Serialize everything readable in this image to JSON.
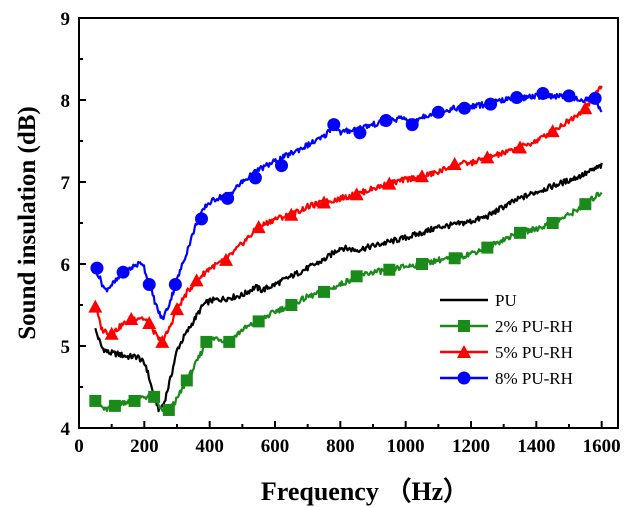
{
  "chart_data": {
    "type": "line",
    "xlabel": "Frequency （Hz）",
    "ylabel": "Sound insulation (dB)",
    "xlim": [
      0,
      1650
    ],
    "ylim": [
      4,
      9
    ],
    "xticks": [
      0,
      200,
      400,
      600,
      800,
      1000,
      1200,
      1400,
      1600
    ],
    "yticks": [
      4,
      5,
      6,
      7,
      8,
      9
    ],
    "legend_position": "bottom-right",
    "series": [
      {
        "name": "PU",
        "color": "#000000",
        "marker": "none",
        "points": [
          [
            50,
            5.2
          ],
          [
            70,
            4.98
          ],
          [
            90,
            4.92
          ],
          [
            120,
            4.9
          ],
          [
            150,
            4.87
          ],
          [
            180,
            4.87
          ],
          [
            205,
            4.76
          ],
          [
            225,
            4.45
          ],
          [
            245,
            4.22
          ],
          [
            260,
            4.3
          ],
          [
            280,
            4.6
          ],
          [
            300,
            4.95
          ],
          [
            320,
            5.1
          ],
          [
            350,
            5.3
          ],
          [
            380,
            5.5
          ],
          [
            400,
            5.55
          ],
          [
            450,
            5.58
          ],
          [
            500,
            5.62
          ],
          [
            540,
            5.72
          ],
          [
            560,
            5.68
          ],
          [
            600,
            5.75
          ],
          [
            650,
            5.85
          ],
          [
            700,
            5.95
          ],
          [
            750,
            6.05
          ],
          [
            800,
            6.2
          ],
          [
            850,
            6.17
          ],
          [
            900,
            6.22
          ],
          [
            950,
            6.27
          ],
          [
            1000,
            6.32
          ],
          [
            1050,
            6.38
          ],
          [
            1100,
            6.45
          ],
          [
            1150,
            6.48
          ],
          [
            1200,
            6.52
          ],
          [
            1250,
            6.58
          ],
          [
            1300,
            6.7
          ],
          [
            1350,
            6.8
          ],
          [
            1400,
            6.88
          ],
          [
            1450,
            6.95
          ],
          [
            1500,
            7.02
          ],
          [
            1550,
            7.1
          ],
          [
            1600,
            7.2
          ]
        ]
      },
      {
        "name": "2% PU-RH",
        "color": "#1a8a1a",
        "marker": "square",
        "points": [
          [
            50,
            4.33
          ],
          [
            80,
            4.22
          ],
          [
            110,
            4.27
          ],
          [
            140,
            4.32
          ],
          [
            170,
            4.33
          ],
          [
            200,
            4.38
          ],
          [
            230,
            4.38
          ],
          [
            255,
            4.2
          ],
          [
            275,
            4.22
          ],
          [
            300,
            4.35
          ],
          [
            330,
            4.58
          ],
          [
            360,
            4.8
          ],
          [
            390,
            5.05
          ],
          [
            420,
            5.1
          ],
          [
            460,
            5.05
          ],
          [
            500,
            5.2
          ],
          [
            550,
            5.3
          ],
          [
            600,
            5.42
          ],
          [
            650,
            5.5
          ],
          [
            700,
            5.6
          ],
          [
            750,
            5.66
          ],
          [
            800,
            5.75
          ],
          [
            850,
            5.85
          ],
          [
            900,
            5.9
          ],
          [
            950,
            5.93
          ],
          [
            1000,
            5.97
          ],
          [
            1050,
            6.0
          ],
          [
            1100,
            6.05
          ],
          [
            1150,
            6.07
          ],
          [
            1200,
            6.13
          ],
          [
            1250,
            6.2
          ],
          [
            1300,
            6.3
          ],
          [
            1350,
            6.38
          ],
          [
            1400,
            6.43
          ],
          [
            1450,
            6.5
          ],
          [
            1500,
            6.6
          ],
          [
            1550,
            6.73
          ],
          [
            1600,
            6.88
          ]
        ]
      },
      {
        "name": "5% PU-RH",
        "color": "#ff0000",
        "marker": "triangle",
        "points": [
          [
            50,
            5.48
          ],
          [
            70,
            5.2
          ],
          [
            100,
            5.15
          ],
          [
            130,
            5.25
          ],
          [
            160,
            5.33
          ],
          [
            190,
            5.35
          ],
          [
            215,
            5.28
          ],
          [
            240,
            5.1
          ],
          [
            255,
            5.05
          ],
          [
            275,
            5.2
          ],
          [
            300,
            5.45
          ],
          [
            330,
            5.65
          ],
          [
            360,
            5.8
          ],
          [
            400,
            5.95
          ],
          [
            450,
            6.05
          ],
          [
            500,
            6.25
          ],
          [
            550,
            6.45
          ],
          [
            600,
            6.55
          ],
          [
            650,
            6.6
          ],
          [
            700,
            6.7
          ],
          [
            750,
            6.75
          ],
          [
            800,
            6.8
          ],
          [
            850,
            6.85
          ],
          [
            900,
            6.92
          ],
          [
            950,
            6.98
          ],
          [
            1000,
            7.03
          ],
          [
            1050,
            7.07
          ],
          [
            1100,
            7.12
          ],
          [
            1150,
            7.22
          ],
          [
            1200,
            7.23
          ],
          [
            1250,
            7.3
          ],
          [
            1300,
            7.35
          ],
          [
            1350,
            7.42
          ],
          [
            1400,
            7.5
          ],
          [
            1450,
            7.62
          ],
          [
            1500,
            7.75
          ],
          [
            1550,
            7.9
          ],
          [
            1600,
            8.18
          ]
        ]
      },
      {
        "name": "8% PU-RH",
        "color": "#0000ff",
        "marker": "circle",
        "points": [
          [
            50,
            5.95
          ],
          [
            80,
            5.68
          ],
          [
            110,
            5.78
          ],
          [
            140,
            5.9
          ],
          [
            170,
            5.98
          ],
          [
            195,
            6.02
          ],
          [
            215,
            5.75
          ],
          [
            240,
            5.45
          ],
          [
            255,
            5.32
          ],
          [
            275,
            5.5
          ],
          [
            300,
            5.8
          ],
          [
            330,
            6.15
          ],
          [
            360,
            6.5
          ],
          [
            390,
            6.72
          ],
          [
            420,
            6.8
          ],
          [
            460,
            6.85
          ],
          [
            500,
            7.0
          ],
          [
            550,
            7.15
          ],
          [
            600,
            7.25
          ],
          [
            650,
            7.35
          ],
          [
            700,
            7.45
          ],
          [
            750,
            7.55
          ],
          [
            780,
            7.7
          ],
          [
            800,
            7.6
          ],
          [
            850,
            7.65
          ],
          [
            900,
            7.7
          ],
          [
            950,
            7.75
          ],
          [
            1000,
            7.78
          ],
          [
            1020,
            7.7
          ],
          [
            1050,
            7.8
          ],
          [
            1100,
            7.85
          ],
          [
            1150,
            7.9
          ],
          [
            1200,
            7.92
          ],
          [
            1250,
            7.95
          ],
          [
            1300,
            8.0
          ],
          [
            1350,
            8.02
          ],
          [
            1400,
            8.05
          ],
          [
            1450,
            8.05
          ],
          [
            1500,
            8.03
          ],
          [
            1550,
            8.0
          ],
          [
            1580,
            8.02
          ],
          [
            1600,
            7.85
          ]
        ],
        "marker_points": [
          [
            55,
            5.95
          ],
          [
            135,
            5.9
          ],
          [
            215,
            5.75
          ],
          [
            295,
            5.75
          ],
          [
            375,
            6.55
          ],
          [
            455,
            6.8
          ],
          [
            540,
            7.05
          ],
          [
            620,
            7.2
          ],
          [
            780,
            7.7
          ],
          [
            860,
            7.6
          ],
          [
            940,
            7.75
          ],
          [
            1020,
            7.7
          ],
          [
            1100,
            7.85
          ],
          [
            1180,
            7.9
          ],
          [
            1260,
            7.95
          ],
          [
            1340,
            8.03
          ],
          [
            1420,
            8.08
          ],
          [
            1500,
            8.05
          ],
          [
            1580,
            8.02
          ]
        ]
      }
    ]
  }
}
